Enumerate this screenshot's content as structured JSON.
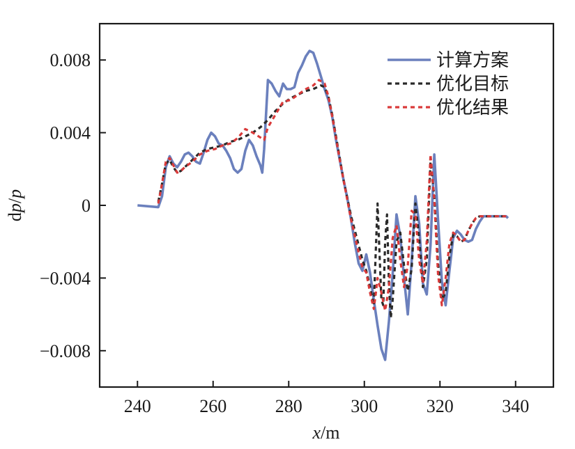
{
  "chart_data": {
    "type": "line",
    "xlabel": "x/m",
    "ylabel": "dp/p",
    "xlim": [
      230,
      350
    ],
    "ylim": [
      -0.01,
      0.01
    ],
    "xticks": [
      240,
      260,
      280,
      300,
      320,
      340
    ],
    "xtick_labels": [
      "240",
      "260",
      "280",
      "300",
      "320",
      "340"
    ],
    "yticks": [
      -0.008,
      -0.004,
      0,
      0.004,
      0.008
    ],
    "ytick_labels": [
      "−0.008",
      "−0.004",
      "0",
      "0.004",
      "0.008"
    ],
    "grid": false,
    "legend_position": "top-right",
    "series": [
      {
        "name": "计算方案",
        "color": "#6b80bd",
        "style": "solid",
        "x": [
          240,
          245.5,
          246.5,
          247.5,
          248.5,
          249.5,
          250.5,
          251.5,
          252.5,
          253.5,
          254.5,
          255.5,
          256.5,
          257.5,
          258.5,
          259.5,
          260.5,
          261.5,
          262.5,
          263.5,
          264.5,
          265.5,
          266.5,
          267.5,
          268.5,
          269.5,
          270.5,
          271.5,
          272.5,
          273.0,
          273.5,
          274.5,
          275.5,
          276.5,
          277.5,
          278.5,
          279.5,
          280.5,
          281.5,
          282.5,
          283.5,
          284.5,
          285.5,
          286.5,
          287.5,
          288.5,
          289.5,
          290.5,
          291.5,
          292.5,
          293.5,
          294.5,
          295.5,
          296.5,
          297.5,
          298.5,
          299.5,
          300.5,
          301.5,
          302.5,
          303.5,
          304.5,
          305.5,
          306.5,
          307.5,
          308.5,
          309.5,
          310.5,
          311.5,
          312.5,
          313.5,
          314.5,
          315.5,
          316.5,
          317.5,
          318.5,
          319.5,
          320.5,
          321.5,
          322.5,
          323.5,
          324.5,
          325.5,
          326.5,
          327.5,
          328.5,
          329.5,
          330.5,
          331.5,
          332.5,
          333.5,
          334.5,
          335.5,
          336.5,
          337.5,
          338.0
        ],
        "y": [
          0,
          -0.0001,
          0.0005,
          0.0021,
          0.0027,
          0.0023,
          0.0021,
          0.0024,
          0.0028,
          0.0029,
          0.0027,
          0.0024,
          0.0023,
          0.0029,
          0.0036,
          0.004,
          0.0038,
          0.0034,
          0.0033,
          0.003,
          0.0026,
          0.002,
          0.0018,
          0.002,
          0.003,
          0.0036,
          0.0033,
          0.0027,
          0.0022,
          0.0018,
          0.0031,
          0.0069,
          0.0067,
          0.0063,
          0.006,
          0.0067,
          0.0064,
          0.0064,
          0.0065,
          0.0073,
          0.0077,
          0.0082,
          0.0085,
          0.0084,
          0.0078,
          0.0071,
          0.0064,
          0.0058,
          0.0049,
          0.0036,
          0.0025,
          0.0014,
          0.0004,
          -0.0008,
          -0.0021,
          -0.0032,
          -0.0036,
          -0.0027,
          -0.0037,
          -0.0052,
          -0.0066,
          -0.0079,
          -0.0085,
          -0.0064,
          -0.0038,
          -0.0005,
          -0.0017,
          -0.004,
          -0.006,
          -0.0031,
          0.0005,
          -0.001,
          -0.0043,
          -0.0049,
          -0.0022,
          0.0028,
          -0.0008,
          -0.0042,
          -0.0055,
          -0.0036,
          -0.0018,
          -0.0014,
          -0.0016,
          -0.0019,
          -0.002,
          -0.0019,
          -0.0013,
          -0.0009,
          -0.0006,
          -0.0006,
          -0.0006,
          -0.0006,
          -0.0006,
          -0.0006,
          -0.0006,
          -0.0007
        ]
      },
      {
        "name": "优化目标",
        "color": "#2a2a2a",
        "style": "dashed",
        "x": [
          245.5,
          246.5,
          247.5,
          248.5,
          249.5,
          250.5,
          251.5,
          252.5,
          254.5,
          256.5,
          258.5,
          260.5,
          262.5,
          264.5,
          266.5,
          268.5,
          270.5,
          272.5,
          274.5,
          276.5,
          278.5,
          280.5,
          282.5,
          284.5,
          286.5,
          288.5,
          289.5,
          290.5,
          291.5,
          292.5,
          293.5,
          294.5,
          295.5,
          296.5,
          297.5,
          298.5,
          299.5,
          300.5,
          301.5,
          302.5,
          303.5,
          304.5,
          305.0,
          305.5,
          306.0,
          306.5,
          307.0,
          307.5,
          308.5,
          309.5,
          310.5,
          311.5,
          312.5,
          313.5,
          314.5,
          315.5,
          316.5,
          317.5,
          318.5,
          319.5,
          320.5,
          321.5,
          322.5,
          323.5,
          324.5,
          325.5,
          326.5,
          327.5,
          328.5,
          329.5,
          330.5,
          331.5,
          332.5,
          333.5,
          334.5,
          335.5,
          336.5,
          337.5
        ],
        "y": [
          0.0002,
          0.0012,
          0.0023,
          0.0025,
          0.0021,
          0.0018,
          0.0019,
          0.0021,
          0.0025,
          0.0029,
          0.0031,
          0.0032,
          0.0033,
          0.0035,
          0.0036,
          0.0038,
          0.004,
          0.0043,
          0.0047,
          0.0052,
          0.0056,
          0.0059,
          0.0061,
          0.0063,
          0.0064,
          0.0066,
          0.0065,
          0.006,
          0.005,
          0.0038,
          0.0026,
          0.0014,
          0.0004,
          -0.0006,
          -0.0014,
          -0.0022,
          -0.003,
          -0.0036,
          -0.0045,
          -0.0055,
          0.0001,
          -0.0052,
          -0.0055,
          -0.002,
          -0.0005,
          -0.0043,
          -0.0062,
          -0.0052,
          -0.002,
          -0.0015,
          -0.0033,
          -0.0047,
          -0.0035,
          0.0001,
          -0.0018,
          -0.0045,
          -0.003,
          0.0024,
          0.0005,
          -0.0032,
          -0.0052,
          -0.0048,
          -0.0028,
          -0.0016,
          -0.0017,
          -0.002,
          -0.0019,
          -0.0014,
          -0.001,
          -0.0007,
          -0.0006,
          -0.0006,
          -0.0006,
          -0.0006,
          -0.0006,
          -0.0006,
          -0.0006,
          -0.0006
        ]
      },
      {
        "name": "优化结果",
        "color": "#d93a3a",
        "style": "dashed",
        "x": [
          245.5,
          246.5,
          247.5,
          248.5,
          249.5,
          250.5,
          251.5,
          252.5,
          254.5,
          256.5,
          258.5,
          260.5,
          262.5,
          264.5,
          266.5,
          268.5,
          270.5,
          272.0,
          273.5,
          274.5,
          276.5,
          278.5,
          280.5,
          282.5,
          284.5,
          286.5,
          288.0,
          289.5,
          290.5,
          291.5,
          292.5,
          293.5,
          294.5,
          295.5,
          296.5,
          297.5,
          298.5,
          299.5,
          300.5,
          301.5,
          302.5,
          303.0,
          303.5,
          304.5,
          305.5,
          306.5,
          307.5,
          308.5,
          309.5,
          310.5,
          311.5,
          312.5,
          313.5,
          314.5,
          315.5,
          316.5,
          317.5,
          318.5,
          319.5,
          320.5,
          321.5,
          322.5,
          323.5,
          324.5,
          325.5,
          326.5,
          327.5,
          328.5,
          329.5,
          330.5,
          331.5,
          332.5,
          333.5,
          334.5,
          335.5,
          336.5,
          337.5
        ],
        "y": [
          0.0001,
          0.0012,
          0.0024,
          0.0026,
          0.0022,
          0.0018,
          0.0019,
          0.0021,
          0.0024,
          0.0028,
          0.003,
          0.0031,
          0.0033,
          0.0034,
          0.0037,
          0.0042,
          0.004,
          0.0038,
          0.0036,
          0.0043,
          0.005,
          0.0057,
          0.0058,
          0.0061,
          0.0064,
          0.0066,
          0.0069,
          0.0067,
          0.006,
          0.0049,
          0.0037,
          0.0025,
          0.0014,
          0.0003,
          -0.0008,
          -0.0017,
          -0.0026,
          -0.0034,
          -0.0037,
          -0.0048,
          -0.0057,
          -0.0049,
          -0.004,
          -0.0048,
          -0.0058,
          -0.0045,
          -0.0018,
          -0.0011,
          -0.003,
          -0.0045,
          -0.0033,
          -0.0003,
          -0.0005,
          -0.003,
          -0.0043,
          -0.002,
          0.0028,
          0.0003,
          -0.0038,
          -0.0055,
          -0.004,
          -0.0021,
          -0.0015,
          -0.0017,
          -0.002,
          -0.0019,
          -0.0014,
          -0.001,
          -0.0007,
          -0.0006,
          -0.0006,
          -0.0006,
          -0.0006,
          -0.0006,
          -0.0006,
          -0.0006,
          -0.0006
        ]
      }
    ]
  }
}
